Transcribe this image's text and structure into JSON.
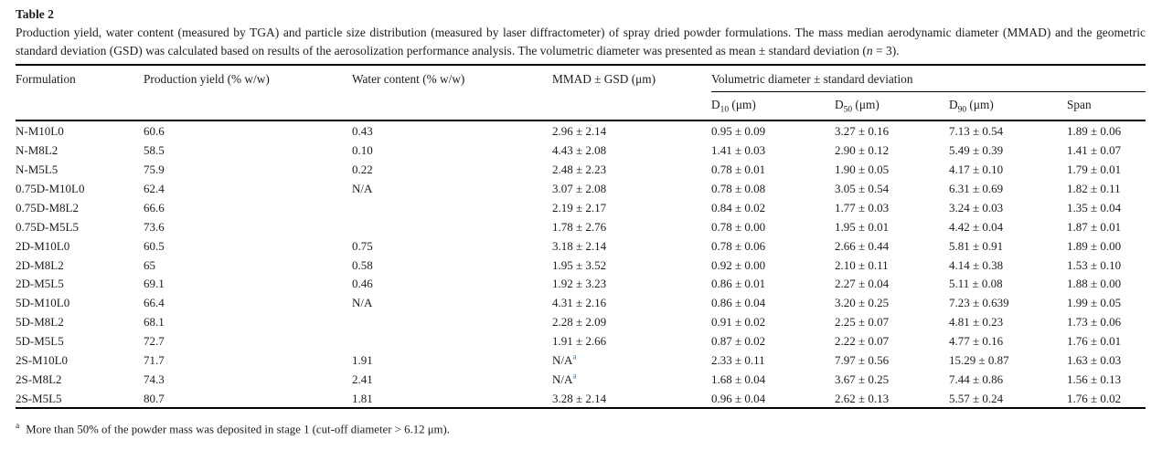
{
  "caption": {
    "label": "Table 2",
    "text_before_italic": "Production yield, water content (measured by TGA) and particle size distribution (measured by laser diffractometer) of spray dried powder formulations. The mass median aerodynamic diameter (MMAD) and the geometric standard deviation (GSD) was calculated based on results of the aerosolization performance analysis. The volumetric diameter was presented as mean ± standard deviation (",
    "italic": "n",
    "text_after_italic": " = 3)."
  },
  "table": {
    "header": {
      "formulation": "Formulation",
      "yield": "Production yield (% w/w)",
      "water": "Water content (% w/w)",
      "mmad": "MMAD ± GSD (μm)",
      "group": "Volumetric diameter ± standard deviation",
      "sub": [
        {
          "key": "d10",
          "base": "D",
          "sub": "10",
          "unit": " (μm)"
        },
        {
          "key": "d50",
          "base": "D",
          "sub": "50",
          "unit": " (μm)"
        },
        {
          "key": "d90",
          "base": "D",
          "sub": "90",
          "unit": " (μm)"
        },
        {
          "key": "span",
          "base": "Span",
          "sub": "",
          "unit": ""
        }
      ]
    },
    "field_order": [
      "formulation",
      "yield",
      "water",
      "mmad",
      "d10",
      "d50",
      "d90",
      "span"
    ],
    "rows": [
      {
        "formulation": "N-M10L0",
        "yield": "60.6",
        "water": "0.43",
        "mmad": "2.96 ± 2.14",
        "mmad_sup": "",
        "d10": "0.95 ± 0.09",
        "d50": "3.27 ± 0.16",
        "d90": "7.13 ± 0.54",
        "span": "1.89 ± 0.06"
      },
      {
        "formulation": "N-M8L2",
        "yield": "58.5",
        "water": "0.10",
        "mmad": "4.43 ± 2.08",
        "mmad_sup": "",
        "d10": "1.41 ± 0.03",
        "d50": "2.90 ± 0.12",
        "d90": "5.49 ± 0.39",
        "span": "1.41 ± 0.07"
      },
      {
        "formulation": "N-M5L5",
        "yield": "75.9",
        "water": "0.22",
        "mmad": "2.48 ± 2.23",
        "mmad_sup": "",
        "d10": "0.78 ± 0.01",
        "d50": "1.90 ± 0.05",
        "d90": "4.17 ± 0.10",
        "span": "1.79 ± 0.01"
      },
      {
        "formulation": "0.75D-M10L0",
        "yield": "62.4",
        "water": "N/A",
        "mmad": "3.07 ± 2.08",
        "mmad_sup": "",
        "d10": "0.78 ± 0.08",
        "d50": "3.05 ± 0.54",
        "d90": "6.31 ± 0.69",
        "span": "1.82 ± 0.11"
      },
      {
        "formulation": "0.75D-M8L2",
        "yield": "66.6",
        "water": "",
        "mmad": "2.19 ± 2.17",
        "mmad_sup": "",
        "d10": "0.84 ± 0.02",
        "d50": "1.77 ± 0.03",
        "d90": "3.24 ± 0.03",
        "span": "1.35 ± 0.04"
      },
      {
        "formulation": "0.75D-M5L5",
        "yield": "73.6",
        "water": "",
        "mmad": "1.78 ± 2.76",
        "mmad_sup": "",
        "d10": "0.78 ± 0.00",
        "d50": "1.95 ± 0.01",
        "d90": "4.42 ± 0.04",
        "span": "1.87 ± 0.01"
      },
      {
        "formulation": "2D-M10L0",
        "yield": "60.5",
        "water": "0.75",
        "mmad": "3.18 ± 2.14",
        "mmad_sup": "",
        "d10": "0.78 ± 0.06",
        "d50": "2.66 ± 0.44",
        "d90": "5.81 ± 0.91",
        "span": "1.89 ± 0.00"
      },
      {
        "formulation": "2D-M8L2",
        "yield": "65",
        "water": "0.58",
        "mmad": "1.95 ± 3.52",
        "mmad_sup": "",
        "d10": "0.92 ± 0.00",
        "d50": "2.10 ± 0.11",
        "d90": "4.14 ± 0.38",
        "span": "1.53 ± 0.10"
      },
      {
        "formulation": "2D-M5L5",
        "yield": "69.1",
        "water": "0.46",
        "mmad": "1.92 ± 3.23",
        "mmad_sup": "",
        "d10": "0.86 ± 0.01",
        "d50": "2.27 ± 0.04",
        "d90": "5.11 ± 0.08",
        "span": "1.88 ± 0.00"
      },
      {
        "formulation": "5D-M10L0",
        "yield": "66.4",
        "water": "N/A",
        "mmad": "4.31 ± 2.16",
        "mmad_sup": "",
        "d10": "0.86 ± 0.04",
        "d50": "3.20 ± 0.25",
        "d90": "7.23 ± 0.639",
        "span": "1.99 ± 0.05"
      },
      {
        "formulation": "5D-M8L2",
        "yield": "68.1",
        "water": "",
        "mmad": "2.28 ± 2.09",
        "mmad_sup": "",
        "d10": "0.91 ± 0.02",
        "d50": "2.25 ± 0.07",
        "d90": "4.81 ± 0.23",
        "span": "1.73 ± 0.06"
      },
      {
        "formulation": "5D-M5L5",
        "yield": "72.7",
        "water": "",
        "mmad": "1.91 ± 2.66",
        "mmad_sup": "",
        "d10": "0.87 ± 0.02",
        "d50": "2.22 ± 0.07",
        "d90": "4.77 ± 0.16",
        "span": "1.76 ± 0.01"
      },
      {
        "formulation": "2S-M10L0",
        "yield": "71.7",
        "water": "1.91",
        "mmad": "N/A",
        "mmad_sup": "a",
        "d10": "2.33 ± 0.11",
        "d50": "7.97 ± 0.56",
        "d90": "15.29 ± 0.87",
        "span": "1.63 ± 0.03"
      },
      {
        "formulation": "2S-M8L2",
        "yield": "74.3",
        "water": "2.41",
        "mmad": "N/A",
        "mmad_sup": "a",
        "d10": "1.68 ± 0.04",
        "d50": "3.67 ± 0.25",
        "d90": "7.44 ± 0.86",
        "span": "1.56 ± 0.13"
      },
      {
        "formulation": "2S-M5L5",
        "yield": "80.7",
        "water": "1.81",
        "mmad": "3.28 ± 2.14",
        "mmad_sup": "",
        "d10": "0.96 ± 0.04",
        "d50": "2.62 ± 0.13",
        "d90": "5.57 ± 0.24",
        "span": "1.76 ± 0.02"
      }
    ]
  },
  "footnote": {
    "marker": "a",
    "text": "More than 50% of the powder mass was deposited in stage 1 (cut-off diameter > 6.12 μm)."
  },
  "colors": {
    "text": "#1b1c20",
    "rule": "#000000",
    "footnote_link": "#3e7ba8",
    "background": "#ffffff"
  }
}
